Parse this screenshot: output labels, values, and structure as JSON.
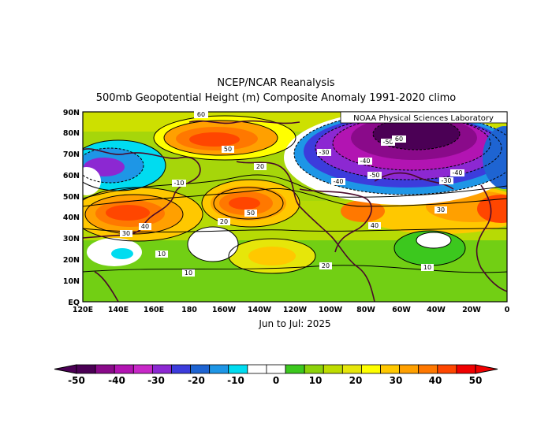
{
  "header": {
    "title_line1": "NCEP/NCAR Reanalysis",
    "title_line2": "500mb Geopotential Height (m) Composite Anomaly 1991-2020 climo"
  },
  "map": {
    "credit": "NOAA Physical Sciences Laboratory",
    "period": "Jun to Jul: 2025",
    "lat_labels": [
      "90N",
      "80N",
      "70N",
      "60N",
      "50N",
      "40N",
      "30N",
      "20N",
      "10N",
      "EQ"
    ],
    "lon_labels": [
      "120E",
      "140E",
      "160E",
      "180",
      "160W",
      "140W",
      "120W",
      "100W",
      "80W",
      "60W",
      "40W",
      "20W",
      "0"
    ],
    "contour_labels": [
      "-50",
      "-40",
      "-30",
      "-20",
      "-10",
      "0",
      "10",
      "20",
      "30",
      "40",
      "50",
      "60"
    ],
    "anomaly_centers": [
      {
        "name": "north-pacific-high",
        "value": 50
      },
      {
        "name": "northeast-pacific-high",
        "value": 50
      },
      {
        "name": "northwest-pacific-high",
        "value": 40
      },
      {
        "name": "greenland-low",
        "value": -60
      },
      {
        "name": "siberia-low",
        "value": -30
      },
      {
        "name": "atlantic-subtropical-high",
        "value": 30
      },
      {
        "name": "eastern-pacific-high",
        "value": 30
      }
    ]
  },
  "colorbar": {
    "tick_labels": [
      "-50",
      "-40",
      "-30",
      "-20",
      "-10",
      "0",
      "10",
      "20",
      "30",
      "40",
      "50"
    ],
    "colors": [
      "#4b0055",
      "#8a0a8a",
      "#b214b2",
      "#c828c8",
      "#8c28d2",
      "#3c3cdc",
      "#1e64d2",
      "#1e96e6",
      "#00dcf0",
      "#ffffff",
      "#ffffff",
      "#3cc81e",
      "#8cd20a",
      "#bedc00",
      "#e6e60a",
      "#ffff00",
      "#ffc800",
      "#ffa000",
      "#ff7800",
      "#ff4600",
      "#f00000"
    ]
  }
}
